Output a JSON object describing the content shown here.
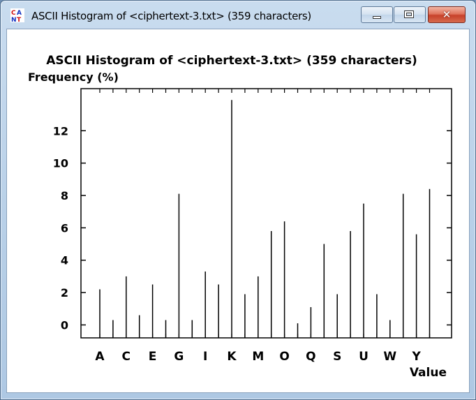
{
  "window": {
    "title": "ASCII Histogram of <ciphertext-3.txt> (359 characters)",
    "close_glyph": "✕",
    "icon": "cryptool-app-icon"
  },
  "chart_data": {
    "type": "bar",
    "title": "ASCII Histogram of <ciphertext-3.txt> (359 characters)",
    "ylabel": "Frequency (%)",
    "xlabel": "Value",
    "ylim": [
      -0.8,
      14.6
    ],
    "yticks": [
      0,
      2,
      4,
      6,
      8,
      10,
      12
    ],
    "categories": [
      "A",
      "B",
      "C",
      "D",
      "E",
      "F",
      "G",
      "H",
      "I",
      "J",
      "K",
      "L",
      "M",
      "N",
      "O",
      "P",
      "Q",
      "R",
      "S",
      "T",
      "U",
      "V",
      "W",
      "X",
      "Y",
      "Z"
    ],
    "x_tick_labels": [
      "A",
      "C",
      "E",
      "G",
      "I",
      "K",
      "M",
      "O",
      "Q",
      "S",
      "U",
      "W",
      "Y"
    ],
    "values": [
      2.2,
      0.3,
      3.0,
      0.6,
      2.5,
      0.3,
      8.1,
      0.3,
      3.3,
      2.5,
      13.9,
      1.9,
      3.0,
      5.8,
      6.4,
      0.1,
      1.1,
      5.0,
      1.9,
      5.8,
      7.5,
      1.9,
      0.3,
      8.1,
      5.6,
      8.4
    ],
    "grid": false
  }
}
